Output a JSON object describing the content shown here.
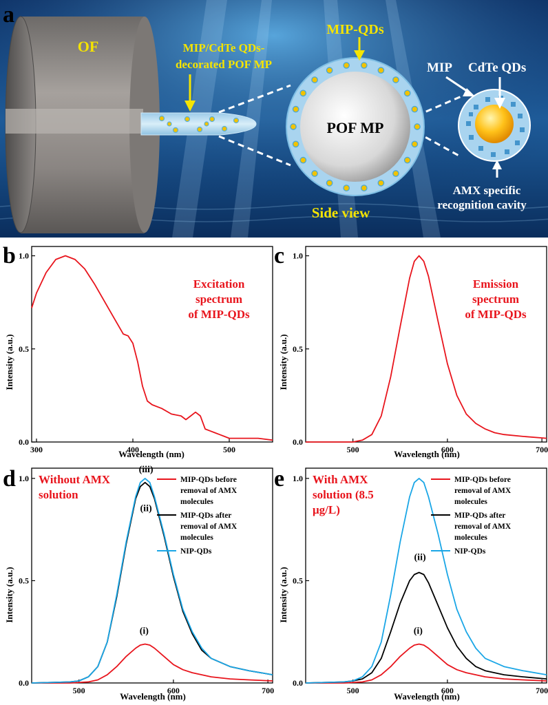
{
  "schematic": {
    "panel_label": "a",
    "of_label": "OF",
    "pof_label_line1": "MIP/CdTe QDs-",
    "pof_label_line2": "decorated POF MP",
    "mipqds_label": "MIP-QDs",
    "pofmp_label": "POF MP",
    "sideview_label": "Side view",
    "mip_label": "MIP",
    "cdte_label": "CdTe QDs",
    "cavity_line1": "AMX specific",
    "cavity_line2": "recognition cavity",
    "colors": {
      "water_dark": "#0a2a5a",
      "water_light": "#2a78b8",
      "label_yellow": "#f5e400",
      "fiber_gray": "#8a8582"
    }
  },
  "chart_data": [
    {
      "id": "b",
      "type": "line",
      "panel_label": "b",
      "note_lines": [
        "Excitation",
        "spectrum",
        "of MIP-QDs"
      ],
      "xlabel": "Wavelength (nm)",
      "ylabel": "Intensity (a.u.)",
      "xlim": [
        295,
        545
      ],
      "ylim": [
        0,
        1.05
      ],
      "xticks": [
        300,
        400,
        500
      ],
      "yticks": [
        0.0,
        0.5,
        1.0
      ],
      "ytick_labels": [
        "0.0",
        "0.5",
        "1.0"
      ],
      "series": [
        {
          "color": "#e8141c",
          "x": [
            295,
            300,
            310,
            320,
            330,
            340,
            350,
            360,
            370,
            380,
            390,
            395,
            400,
            405,
            410,
            415,
            420,
            430,
            440,
            450,
            455,
            460,
            465,
            470,
            475,
            480,
            485,
            490,
            495,
            500,
            510,
            520,
            530,
            545
          ],
          "y": [
            0.72,
            0.8,
            0.91,
            0.98,
            1.0,
            0.98,
            0.93,
            0.85,
            0.76,
            0.67,
            0.58,
            0.57,
            0.53,
            0.43,
            0.3,
            0.22,
            0.2,
            0.18,
            0.15,
            0.14,
            0.12,
            0.14,
            0.16,
            0.14,
            0.07,
            0.06,
            0.05,
            0.04,
            0.03,
            0.02,
            0.02,
            0.02,
            0.02,
            0.01
          ]
        }
      ]
    },
    {
      "id": "c",
      "type": "line",
      "panel_label": "c",
      "note_lines": [
        "Emission",
        "spectrum",
        "of MIP-QDs"
      ],
      "xlabel": "Wavelength (nm)",
      "ylabel": "Intensity (a.u.)",
      "xlim": [
        450,
        705
      ],
      "ylim": [
        0,
        1.05
      ],
      "xticks": [
        500,
        600,
        700
      ],
      "yticks": [
        0.0,
        0.5,
        1.0
      ],
      "ytick_labels": [
        "0.0",
        "0.5",
        "1.0"
      ],
      "series": [
        {
          "color": "#e8141c",
          "x": [
            450,
            480,
            500,
            510,
            520,
            530,
            540,
            550,
            560,
            565,
            570,
            575,
            580,
            590,
            600,
            610,
            620,
            630,
            640,
            650,
            660,
            680,
            705
          ],
          "y": [
            0.0,
            0.0,
            0.0,
            0.01,
            0.04,
            0.14,
            0.35,
            0.62,
            0.88,
            0.97,
            1.0,
            0.97,
            0.89,
            0.65,
            0.42,
            0.25,
            0.15,
            0.1,
            0.07,
            0.05,
            0.04,
            0.03,
            0.02
          ]
        }
      ]
    },
    {
      "id": "d",
      "type": "line",
      "panel_label": "d",
      "note_lines": [
        "Without AMX",
        "solution"
      ],
      "xlabel": "Wavelength (nm)",
      "ylabel": "Intensity (a.u.)",
      "xlim": [
        450,
        705
      ],
      "ylim": [
        0,
        1.05
      ],
      "xticks": [
        500,
        600,
        700
      ],
      "yticks": [
        0.0,
        0.5,
        1.0
      ],
      "ytick_labels": [
        "0.0",
        "0.5",
        "1.0"
      ],
      "legend": [
        {
          "label_lines": [
            "MIP-QDs before",
            "removal of AMX",
            "molecules"
          ],
          "color": "#e8141c"
        },
        {
          "label_lines": [
            "MIP-QDs after",
            "removal of AMX",
            "molecules"
          ],
          "color": "#000000"
        },
        {
          "label_lines": [
            "NIP-QDs"
          ],
          "color": "#1aa6e6"
        }
      ],
      "annotations": [
        {
          "text": "(iii)",
          "x": 571,
          "y": 1.03
        },
        {
          "text": "(ii)",
          "x": 571,
          "y": 0.84
        },
        {
          "text": "(i)",
          "x": 569,
          "y": 0.24
        }
      ],
      "series": [
        {
          "color": "#e8141c",
          "x": [
            450,
            490,
            510,
            520,
            530,
            540,
            550,
            560,
            565,
            570,
            575,
            580,
            590,
            600,
            610,
            620,
            630,
            640,
            660,
            680,
            705
          ],
          "y": [
            0.0,
            0.0,
            0.005,
            0.015,
            0.04,
            0.08,
            0.13,
            0.17,
            0.185,
            0.19,
            0.185,
            0.17,
            0.13,
            0.09,
            0.065,
            0.05,
            0.04,
            0.03,
            0.02,
            0.015,
            0.01
          ]
        },
        {
          "color": "#000000",
          "x": [
            450,
            490,
            500,
            510,
            520,
            530,
            540,
            550,
            560,
            565,
            570,
            575,
            580,
            590,
            600,
            610,
            620,
            630,
            640,
            660,
            680,
            705
          ],
          "y": [
            0.0,
            0.005,
            0.01,
            0.03,
            0.08,
            0.2,
            0.42,
            0.68,
            0.9,
            0.96,
            0.98,
            0.96,
            0.9,
            0.72,
            0.52,
            0.35,
            0.24,
            0.16,
            0.12,
            0.08,
            0.06,
            0.04
          ]
        },
        {
          "color": "#1aa6e6",
          "x": [
            450,
            490,
            500,
            510,
            520,
            530,
            540,
            550,
            560,
            565,
            570,
            575,
            580,
            590,
            600,
            610,
            620,
            630,
            640,
            660,
            680,
            705
          ],
          "y": [
            0.0,
            0.005,
            0.01,
            0.03,
            0.08,
            0.2,
            0.43,
            0.69,
            0.91,
            0.98,
            1.0,
            0.98,
            0.91,
            0.73,
            0.53,
            0.36,
            0.25,
            0.17,
            0.12,
            0.08,
            0.06,
            0.04
          ]
        }
      ]
    },
    {
      "id": "e",
      "type": "line",
      "panel_label": "e",
      "note_lines": [
        "With AMX",
        "solution (8.5",
        "μg/L)"
      ],
      "xlabel": "Wavelength (nm)",
      "ylabel": "Intensity (a.u.)",
      "xlim": [
        450,
        705
      ],
      "ylim": [
        0,
        1.05
      ],
      "xticks": [
        500,
        600,
        700
      ],
      "yticks": [
        0.0,
        0.5,
        1.0
      ],
      "ytick_labels": [
        "0.0",
        "0.5",
        "1.0"
      ],
      "legend": [
        {
          "label_lines": [
            "MIP-QDs before",
            "removal of AMX",
            "molecules"
          ],
          "color": "#e8141c"
        },
        {
          "label_lines": [
            "MIP-QDs after",
            "removal of AMX",
            "molecules"
          ],
          "color": "#000000"
        },
        {
          "label_lines": [
            "NIP-QDs"
          ],
          "color": "#1aa6e6"
        }
      ],
      "annotations": [
        {
          "text": "(iii)",
          "x": 571,
          "y": 1.09
        },
        {
          "text": "(ii)",
          "x": 571,
          "y": 0.6
        },
        {
          "text": "(i)",
          "x": 569,
          "y": 0.24
        }
      ],
      "series": [
        {
          "color": "#e8141c",
          "x": [
            450,
            490,
            510,
            520,
            530,
            540,
            550,
            560,
            565,
            570,
            575,
            580,
            590,
            600,
            610,
            620,
            630,
            640,
            660,
            680,
            705
          ],
          "y": [
            0.0,
            0.0,
            0.005,
            0.015,
            0.04,
            0.08,
            0.13,
            0.17,
            0.185,
            0.19,
            0.185,
            0.17,
            0.13,
            0.09,
            0.065,
            0.05,
            0.04,
            0.03,
            0.02,
            0.015,
            0.01
          ]
        },
        {
          "color": "#000000",
          "x": [
            450,
            490,
            500,
            510,
            520,
            530,
            540,
            550,
            560,
            565,
            570,
            575,
            580,
            590,
            600,
            610,
            620,
            630,
            640,
            660,
            680,
            705
          ],
          "y": [
            0.0,
            0.005,
            0.01,
            0.02,
            0.05,
            0.12,
            0.25,
            0.39,
            0.5,
            0.53,
            0.54,
            0.53,
            0.49,
            0.38,
            0.27,
            0.18,
            0.12,
            0.08,
            0.06,
            0.04,
            0.03,
            0.02
          ]
        },
        {
          "color": "#1aa6e6",
          "x": [
            450,
            490,
            500,
            510,
            520,
            530,
            540,
            550,
            560,
            565,
            570,
            575,
            580,
            590,
            600,
            610,
            620,
            630,
            640,
            660,
            680,
            705
          ],
          "y": [
            0.0,
            0.005,
            0.01,
            0.03,
            0.08,
            0.2,
            0.43,
            0.69,
            0.91,
            0.98,
            1.0,
            0.98,
            0.91,
            0.73,
            0.53,
            0.36,
            0.25,
            0.17,
            0.12,
            0.08,
            0.06,
            0.04
          ]
        }
      ]
    }
  ]
}
